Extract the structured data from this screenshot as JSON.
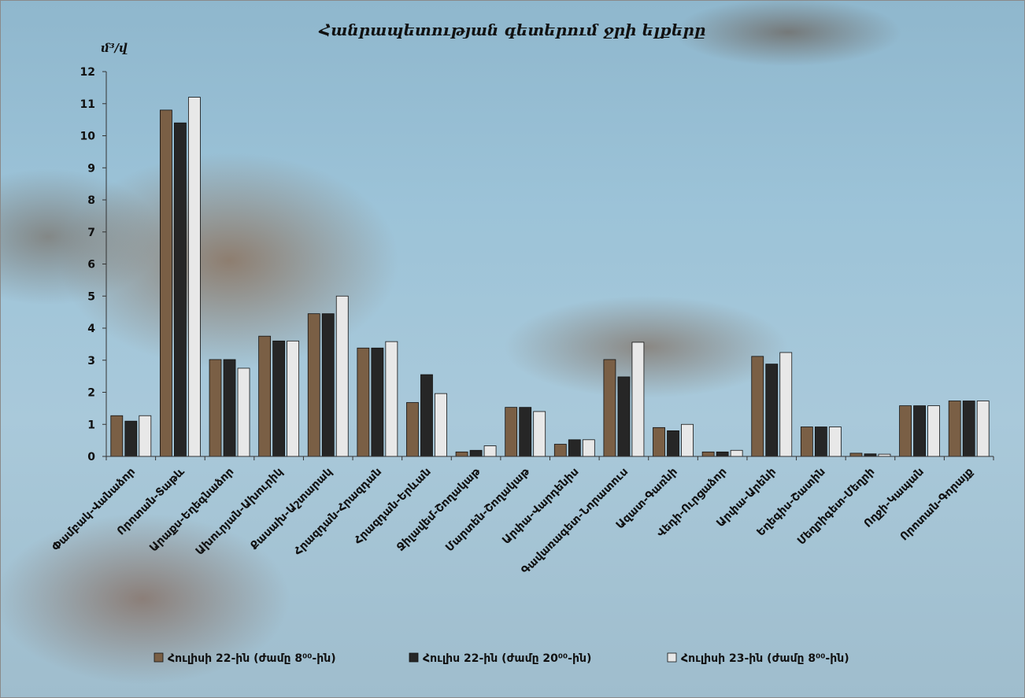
{
  "chart_data": {
    "type": "bar",
    "title": "Հանրապետության գետերում ջրի ելքերը",
    "ylabel": "մ³/վ",
    "xlabel": "",
    "ylim": [
      0,
      12
    ],
    "yticks": [
      "0",
      "1",
      "2",
      "3",
      "4",
      "5",
      "6",
      "7",
      "8",
      "9",
      "10",
      "11",
      "12"
    ],
    "grid": false,
    "legend_position": "bottom",
    "categories": [
      "Փամբակ-Վանաձոր",
      "Որոտան-Տաթև",
      "Արաքս-Եղեգնաձոր",
      "Ախուրյան-Ախուրիկ",
      "Քասախ-Աշտարակ",
      "Հրազդան-Հրազդան",
      "Հրազդան-Երևան",
      "Ջիլավեմ-Շողակաթ",
      "Մարտեն-Շողակաթ",
      "Արփա-Վարդենիս",
      "Գավառագետ-Նորատուս",
      "Ազատ-Գառնի",
      "Վեդի-Ուրցաձոր",
      "Արփա-Արենի",
      "Եղեգիս-Շատին",
      "Մեղրիգետ-Մեղրի",
      "Ողջի-Կապան",
      "Որոտան-Գորայք"
    ],
    "series": [
      {
        "name": "Հուլիսի 22-ին (ժամը 8⁰⁰-ին)",
        "color": "#7a5f45",
        "values": [
          1.27,
          10.8,
          3.02,
          3.75,
          4.45,
          3.38,
          1.68,
          0.14,
          1.53,
          0.38,
          3.02,
          0.9,
          0.14,
          3.12,
          0.92,
          0.1,
          1.58,
          1.73
        ]
      },
      {
        "name": "Հուլիս 22-ին (ժամը 20⁰⁰-ին)",
        "color": "#262626",
        "values": [
          1.1,
          10.4,
          3.02,
          3.6,
          4.45,
          3.38,
          2.55,
          0.19,
          1.53,
          0.52,
          2.48,
          0.8,
          0.14,
          2.88,
          0.92,
          0.08,
          1.58,
          1.73
        ]
      },
      {
        "name": "Հուլիսի 23-ին (ժամը 8⁰⁰-ին)",
        "color": "#e8e8e8",
        "values": [
          1.27,
          11.2,
          2.75,
          3.6,
          5.0,
          3.58,
          1.96,
          0.33,
          1.4,
          0.52,
          3.56,
          1.0,
          0.19,
          3.24,
          0.92,
          0.07,
          1.58,
          1.73
        ]
      }
    ]
  }
}
